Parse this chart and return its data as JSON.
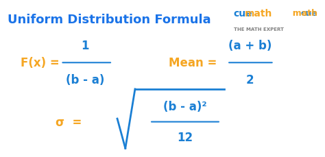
{
  "title": "Uniform Distribution Formula",
  "title_color": "#1a73e8",
  "title_fontsize": 13,
  "bg_color": "#ffffff",
  "orange_color": "#f5a623",
  "blue_color": "#1a7fd4",
  "formula1_lhs": "F(x) = ",
  "formula1_num": "1",
  "formula1_den": "(b - a)",
  "formula2_lhs": "Mean = ",
  "formula2_num": "(a + b)",
  "formula2_den": "2",
  "formula3_lhs": "σ  = ",
  "formula3_radicand_num": "(b - a)²",
  "formula3_radicand_den": "12",
  "cuemath_text": "cuemath",
  "cuemath_sub": "THE MATH EXPERT"
}
